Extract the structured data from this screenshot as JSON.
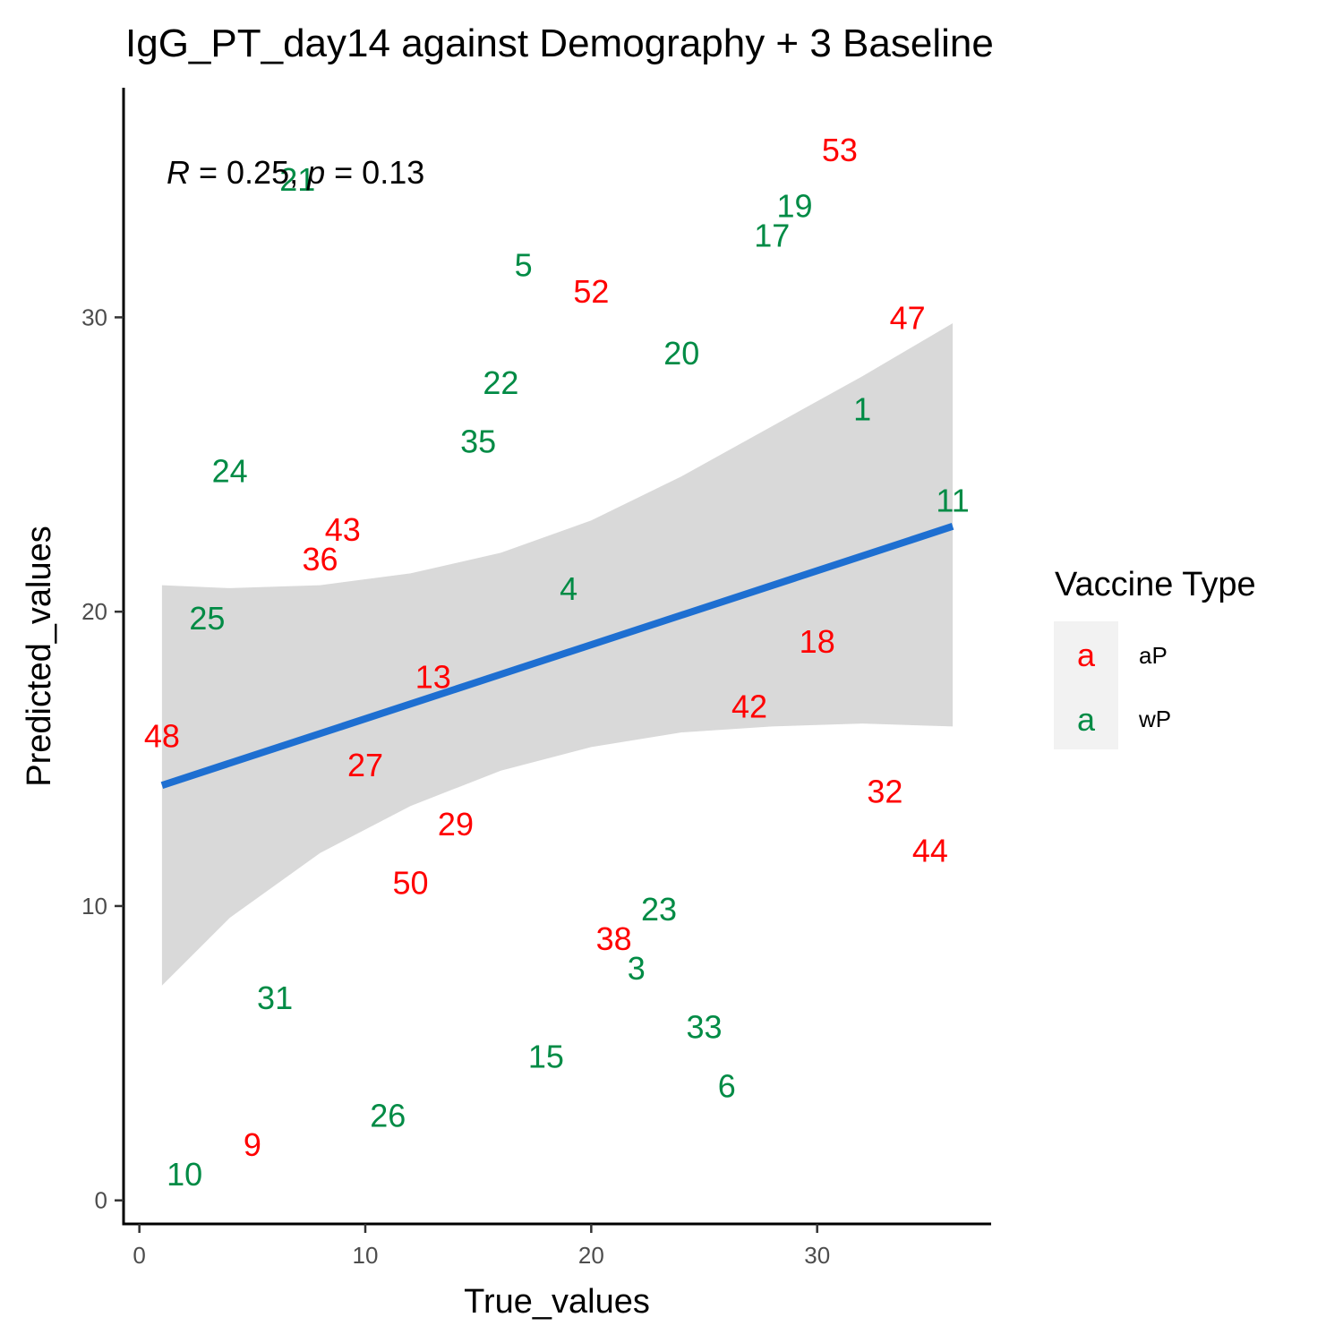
{
  "chart_data": {
    "type": "scatter",
    "title": "IgG_PT_day14 against Demography + 3 Baseline",
    "xlabel": "True_values",
    "ylabel": "Predicted_values",
    "xlim": [
      -0.7,
      37.7
    ],
    "ylim": [
      -0.8,
      37.8
    ],
    "x_ticks": [
      0,
      10,
      20,
      30
    ],
    "y_ticks": [
      0,
      10,
      20,
      30
    ],
    "grid": false,
    "stat_annotation": {
      "r_symbol": "R",
      "r_value": " = 0.25, ",
      "p_symbol": "p",
      "p_value": " = 0.13"
    },
    "legend": {
      "title": "Vaccine Type",
      "position": "right",
      "key_glyph": "a",
      "entries": [
        {
          "label": "aP",
          "color": "#ff0000"
        },
        {
          "label": "wP",
          "color": "#008b45"
        }
      ]
    },
    "series": [
      {
        "name": "aP",
        "color": "#ff0000",
        "points": [
          {
            "label": "53",
            "x": 31.0,
            "y": 35.7
          },
          {
            "label": "52",
            "x": 20.0,
            "y": 30.9
          },
          {
            "label": "47",
            "x": 34.0,
            "y": 30.0
          },
          {
            "label": "43",
            "x": 9.0,
            "y": 22.8
          },
          {
            "label": "36",
            "x": 8.0,
            "y": 21.8
          },
          {
            "label": "18",
            "x": 30.0,
            "y": 19.0
          },
          {
            "label": "13",
            "x": 13.0,
            "y": 17.8
          },
          {
            "label": "42",
            "x": 27.0,
            "y": 16.8
          },
          {
            "label": "48",
            "x": 1.0,
            "y": 15.8
          },
          {
            "label": "27",
            "x": 10.0,
            "y": 14.8
          },
          {
            "label": "32",
            "x": 33.0,
            "y": 13.9
          },
          {
            "label": "29",
            "x": 14.0,
            "y": 12.8
          },
          {
            "label": "44",
            "x": 35.0,
            "y": 11.9
          },
          {
            "label": "50",
            "x": 12.0,
            "y": 10.8
          },
          {
            "label": "38",
            "x": 21.0,
            "y": 8.9
          },
          {
            "label": "9",
            "x": 5.0,
            "y": 1.9
          }
        ]
      },
      {
        "name": "wP",
        "color": "#008b45",
        "points": [
          {
            "label": "21",
            "x": 7.0,
            "y": 34.7
          },
          {
            "label": "19",
            "x": 29.0,
            "y": 33.8
          },
          {
            "label": "17",
            "x": 28.0,
            "y": 32.8
          },
          {
            "label": "5",
            "x": 17.0,
            "y": 31.8
          },
          {
            "label": "20",
            "x": 24.0,
            "y": 28.8
          },
          {
            "label": "22",
            "x": 16.0,
            "y": 27.8
          },
          {
            "label": "1",
            "x": 32.0,
            "y": 26.9
          },
          {
            "label": "35",
            "x": 15.0,
            "y": 25.8
          },
          {
            "label": "24",
            "x": 4.0,
            "y": 24.8
          },
          {
            "label": "11",
            "x": 36.0,
            "y": 23.8
          },
          {
            "label": "4",
            "x": 19.0,
            "y": 20.8
          },
          {
            "label": "25",
            "x": 3.0,
            "y": 19.8
          },
          {
            "label": "23",
            "x": 23.0,
            "y": 9.9
          },
          {
            "label": "3",
            "x": 22.0,
            "y": 7.9
          },
          {
            "label": "31",
            "x": 6.0,
            "y": 6.9
          },
          {
            "label": "33",
            "x": 25.0,
            "y": 5.9
          },
          {
            "label": "15",
            "x": 18.0,
            "y": 4.9
          },
          {
            "label": "6",
            "x": 26.0,
            "y": 3.9
          },
          {
            "label": "26",
            "x": 11.0,
            "y": 2.9
          },
          {
            "label": "10",
            "x": 2.0,
            "y": 0.9
          }
        ]
      }
    ],
    "regression": {
      "color": "#1e6fd1",
      "band_color": "#d9d9d9",
      "line": [
        {
          "x": 1.0,
          "y": 14.1
        },
        {
          "x": 36.0,
          "y": 22.9
        }
      ],
      "band": [
        {
          "x": 1.0,
          "lower": 7.3,
          "upper": 20.9
        },
        {
          "x": 4.0,
          "lower": 9.6,
          "upper": 20.8
        },
        {
          "x": 8.0,
          "lower": 11.8,
          "upper": 20.9
        },
        {
          "x": 12.0,
          "lower": 13.4,
          "upper": 21.3
        },
        {
          "x": 16.0,
          "lower": 14.6,
          "upper": 22.0
        },
        {
          "x": 20.0,
          "lower": 15.4,
          "upper": 23.1
        },
        {
          "x": 24.0,
          "lower": 15.9,
          "upper": 24.6
        },
        {
          "x": 28.0,
          "lower": 16.1,
          "upper": 26.3
        },
        {
          "x": 32.0,
          "lower": 16.2,
          "upper": 28.0
        },
        {
          "x": 36.0,
          "lower": 16.1,
          "upper": 29.8
        }
      ]
    }
  }
}
